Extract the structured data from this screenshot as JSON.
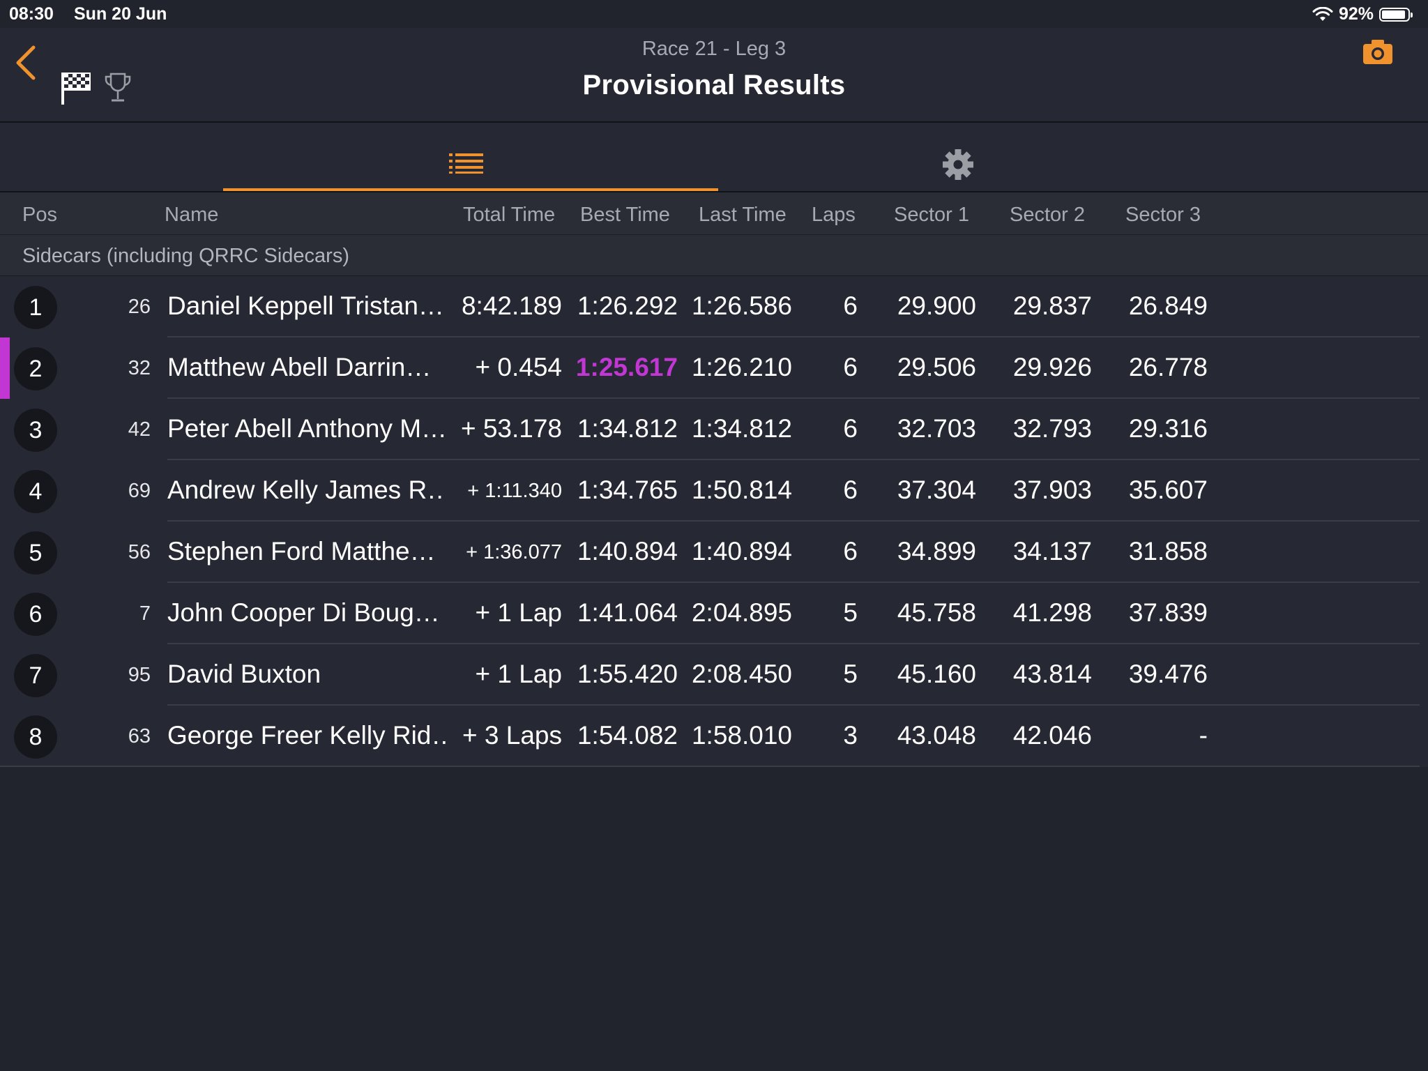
{
  "status_bar": {
    "time": "08:30",
    "date": "Sun 20 Jun",
    "battery_percent": "92%",
    "battery_level": 0.92
  },
  "header": {
    "subtitle": "Race 21  -  Leg 3",
    "title": "Provisional Results",
    "icons": {
      "back": "chevron-left-icon",
      "flag": "checkered-flag-icon",
      "trophy": "trophy-icon",
      "camera": "camera-icon"
    }
  },
  "tabs": [
    {
      "icon": "list-icon",
      "selected": true
    },
    {
      "icon": "gear-icon",
      "selected": false
    }
  ],
  "columns": {
    "pos": "Pos",
    "name": "Name",
    "total": "Total Time",
    "best": "Best Time",
    "last": "Last Time",
    "laps": "Laps",
    "sector1": "Sector 1",
    "sector2": "Sector 2",
    "sector3": "Sector 3"
  },
  "section_title": "Sidecars (including QRRC Sidecars)",
  "results": [
    {
      "pos": "1",
      "num": "26",
      "name": "Daniel Keppell Tristan…",
      "total": "8:42.189",
      "best": "1:26.292",
      "last": "1:26.586",
      "laps": "6",
      "s1": "29.900",
      "s2": "29.837",
      "s3": "26.849"
    },
    {
      "pos": "2",
      "num": "32",
      "name": "Matthew Abell Darrin…",
      "total": "+ 0.454",
      "best": "1:25.617",
      "last": "1:26.210",
      "laps": "6",
      "s1": "29.506",
      "s2": "29.926",
      "s3": "26.778"
    },
    {
      "pos": "3",
      "num": "42",
      "name": "Peter Abell Anthony M…",
      "total": "+ 53.178",
      "best": "1:34.812",
      "last": "1:34.812",
      "laps": "6",
      "s1": "32.703",
      "s2": "32.793",
      "s3": "29.316"
    },
    {
      "pos": "4",
      "num": "69",
      "name": "Andrew Kelly James R…",
      "total": "+ 1:11.340",
      "best": "1:34.765",
      "last": "1:50.814",
      "laps": "6",
      "s1": "37.304",
      "s2": "37.903",
      "s3": "35.607"
    },
    {
      "pos": "5",
      "num": "56",
      "name": "Stephen Ford Matthe…",
      "total": "+ 1:36.077",
      "best": "1:40.894",
      "last": "1:40.894",
      "laps": "6",
      "s1": "34.899",
      "s2": "34.137",
      "s3": "31.858"
    },
    {
      "pos": "6",
      "num": "7",
      "name": "John Cooper Di Boug…",
      "total": "+ 1 Lap",
      "best": "1:41.064",
      "last": "2:04.895",
      "laps": "5",
      "s1": "45.758",
      "s2": "41.298",
      "s3": "37.839"
    },
    {
      "pos": "7",
      "num": "95",
      "name": "David Buxton",
      "total": "+ 1 Lap",
      "best": "1:55.420",
      "last": "2:08.450",
      "laps": "5",
      "s1": "45.160",
      "s2": "43.814",
      "s3": "39.476"
    },
    {
      "pos": "8",
      "num": "63",
      "name": "George Freer Kelly Rid…",
      "total": "+ 3 Laps",
      "best": "1:54.082",
      "last": "1:58.010",
      "laps": "3",
      "s1": "43.048",
      "s2": "42.046",
      "s3": "-"
    }
  ],
  "colors": {
    "accent": "#f0922e",
    "fastest_lap": "#c237d3",
    "background": "#21232d"
  }
}
